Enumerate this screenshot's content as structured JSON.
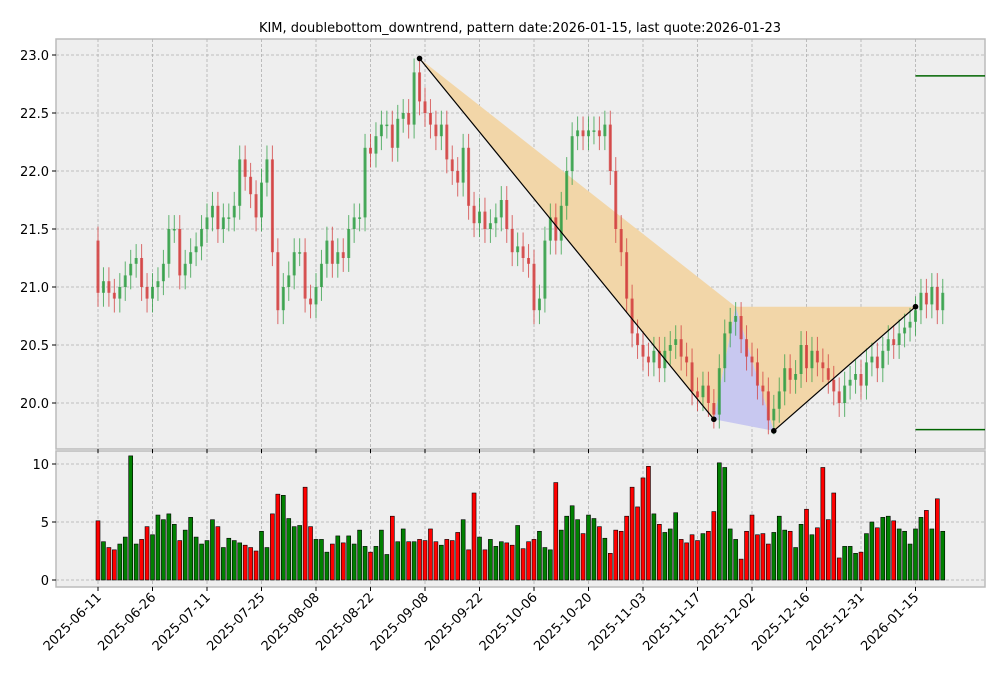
{
  "chart_data": {
    "type": "candlestick",
    "title": "KIM, doublebottom_downtrend, pattern date:2026-01-15, last quote:2026-01-23",
    "xlabel": "",
    "ylabel": "",
    "ylim": [
      19.7,
      23.12
    ],
    "yticks": [
      "20.0",
      "20.5",
      "21.0",
      "21.5",
      "22.0",
      "22.5",
      "23.0"
    ],
    "volume_ylim": [
      -0.5,
      11.2
    ],
    "volume_yticks": [
      "0",
      "5",
      "10"
    ],
    "xticks": [
      {
        "index": 0,
        "label": "2025-06-11"
      },
      {
        "index": 10,
        "label": "2025-06-26"
      },
      {
        "index": 20,
        "label": "2025-07-11"
      },
      {
        "index": 30,
        "label": "2025-07-25"
      },
      {
        "index": 40,
        "label": "2025-08-08"
      },
      {
        "index": 50,
        "label": "2025-08-22"
      },
      {
        "index": 60,
        "label": "2025-09-08"
      },
      {
        "index": 70,
        "label": "2025-09-22"
      },
      {
        "index": 80,
        "label": "2025-10-06"
      },
      {
        "index": 90,
        "label": "2025-10-20"
      },
      {
        "index": 100,
        "label": "2025-11-03"
      },
      {
        "index": 110,
        "label": "2025-11-17"
      },
      {
        "index": 120,
        "label": "2025-12-02"
      },
      {
        "index": 130,
        "label": "2025-12-16"
      },
      {
        "index": 140,
        "label": "2025-12-31"
      },
      {
        "index": 150,
        "label": "2026-01-15"
      }
    ],
    "first_open": 21.4,
    "wick": 0.12,
    "close": [
      20.95,
      21.05,
      20.95,
      20.9,
      21.0,
      21.1,
      21.2,
      21.25,
      21.0,
      20.9,
      21.0,
      21.05,
      21.2,
      21.5,
      21.5,
      21.1,
      21.2,
      21.3,
      21.35,
      21.5,
      21.6,
      21.7,
      21.5,
      21.6,
      21.6,
      21.7,
      22.1,
      21.95,
      21.8,
      21.6,
      21.9,
      22.1,
      21.3,
      20.8,
      21.0,
      21.1,
      21.3,
      21.3,
      20.9,
      20.85,
      21.0,
      21.2,
      21.4,
      21.2,
      21.3,
      21.25,
      21.5,
      21.6,
      21.6,
      22.2,
      22.15,
      22.3,
      22.4,
      22.4,
      22.2,
      22.45,
      22.5,
      22.4,
      22.85,
      22.6,
      22.5,
      22.4,
      22.3,
      22.4,
      22.1,
      22.0,
      21.9,
      22.2,
      21.7,
      21.55,
      21.65,
      21.5,
      21.55,
      21.6,
      21.75,
      21.5,
      21.3,
      21.35,
      21.25,
      21.2,
      20.8,
      20.9,
      21.4,
      21.6,
      21.4,
      21.7,
      22.0,
      22.3,
      22.35,
      22.3,
      22.35,
      22.35,
      22.3,
      22.4,
      22.0,
      21.5,
      21.3,
      20.9,
      20.6,
      20.5,
      20.4,
      20.35,
      20.45,
      20.3,
      20.45,
      20.5,
      20.55,
      20.4,
      20.35,
      20.1,
      20.05,
      20.15,
      20.0,
      19.9,
      20.3,
      20.6,
      20.7,
      20.75,
      20.55,
      20.4,
      20.35,
      20.15,
      20.1,
      19.85,
      19.95,
      20.1,
      20.3,
      20.2,
      20.25,
      20.5,
      20.3,
      20.45,
      20.35,
      20.3,
      20.2,
      20.1,
      20.0,
      20.15,
      20.2,
      20.25,
      20.15,
      20.35,
      20.4,
      20.3,
      20.45,
      20.55,
      20.5,
      20.6,
      20.65,
      20.7,
      20.8,
      20.95,
      20.85,
      21.0,
      20.8,
      20.95
    ],
    "volume": [
      5.1,
      3.3,
      2.8,
      2.6,
      3.1,
      3.7,
      10.7,
      3.1,
      3.5,
      4.6,
      3.9,
      5.6,
      5.2,
      5.7,
      4.8,
      3.4,
      4.3,
      5.4,
      3.7,
      3.1,
      3.4,
      5.2,
      4.6,
      2.8,
      3.6,
      3.4,
      3.2,
      3.0,
      2.8,
      2.5,
      4.2,
      2.8,
      5.7,
      7.4,
      7.3,
      5.3,
      4.6,
      4.7,
      8.0,
      4.6,
      3.5,
      3.5,
      2.4,
      3.1,
      3.8,
      3.2,
      3.8,
      3.1,
      4.3,
      2.9,
      2.4,
      2.9,
      4.3,
      2.2,
      5.5,
      3.3,
      4.4,
      3.3,
      3.3,
      3.5,
      3.4,
      4.4,
      3.3,
      3.0,
      3.5,
      3.4,
      4.1,
      5.2,
      2.6,
      7.5,
      3.7,
      2.6,
      3.5,
      2.9,
      3.3,
      3.2,
      3.0,
      4.7,
      2.7,
      3.3,
      3.5,
      4.2,
      2.8,
      2.6,
      8.4,
      4.3,
      5.5,
      6.4,
      5.2,
      4.0,
      5.6,
      5.3,
      4.6,
      3.6,
      2.3,
      4.3,
      4.2,
      5.5,
      8.0,
      6.3,
      8.8,
      9.8,
      5.7,
      4.8,
      4.1,
      4.4,
      5.8,
      3.5,
      3.2,
      3.9,
      3.4,
      4.0,
      4.2,
      5.9,
      10.1,
      9.7,
      4.4,
      3.5,
      1.8,
      4.2,
      5.6,
      3.9,
      4.0,
      3.1,
      4.1,
      5.5,
      4.3,
      4.2,
      2.8,
      4.8,
      6.1,
      3.9,
      4.5,
      9.7,
      5.2,
      7.5,
      1.9,
      2.9,
      2.9,
      2.3,
      2.4,
      4.0,
      5.0,
      4.5,
      5.4,
      5.5,
      5.1,
      4.4,
      4.2,
      3.1,
      4.4,
      5.4,
      6.0,
      4.4,
      7.0,
      4.2
    ],
    "pattern_points": [
      {
        "name": "peak",
        "index": 59,
        "price": 22.97
      },
      {
        "name": "bottom-1",
        "index": 113,
        "price": 19.86
      },
      {
        "name": "middle-peak",
        "index": 117,
        "price": 20.83
      },
      {
        "name": "bottom-2",
        "index": 124,
        "price": 19.76
      },
      {
        "name": "breakout",
        "index": 150,
        "price": 20.83
      }
    ],
    "target_levels": [
      22.82,
      19.77
    ],
    "colors": {
      "up": "#2e9e44",
      "down": "#d23c3c",
      "vol_up": "#008000",
      "vol_down": "#ff0000",
      "pattern_fill": "#f2d6a8",
      "bottom_fill": "#c8c8f0",
      "target_line": "#006400",
      "axes_bg": "#eeeeee"
    }
  }
}
